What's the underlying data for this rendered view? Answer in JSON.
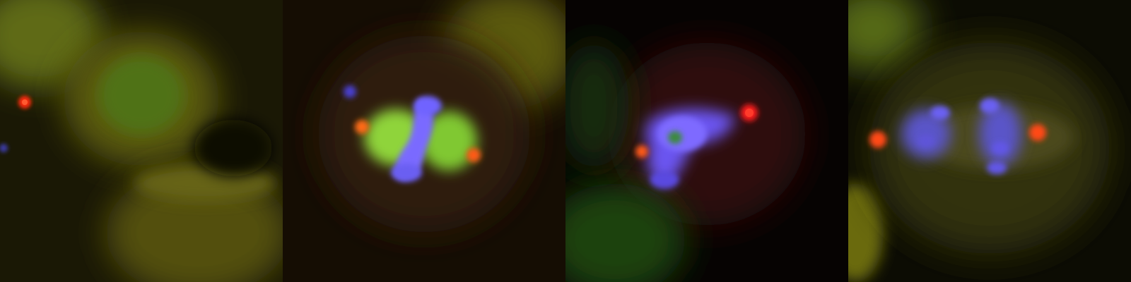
{
  "figure": {
    "panel_count": 4,
    "channels": {
      "dna": "#6f63ff",
      "spindle": "#7fd12b",
      "centrosome": "#ff3b1e",
      "cytoplasm_background": "#6b6a12"
    },
    "panels": [
      {
        "description_key": "interphase",
        "centrosome_count": 1
      },
      {
        "description_key": "metaphase",
        "centrosome_count": 2
      },
      {
        "description_key": "abnormal-spindle",
        "centrosome_count": 2
      },
      {
        "description_key": "anaphase",
        "centrosome_count": 2
      }
    ]
  }
}
